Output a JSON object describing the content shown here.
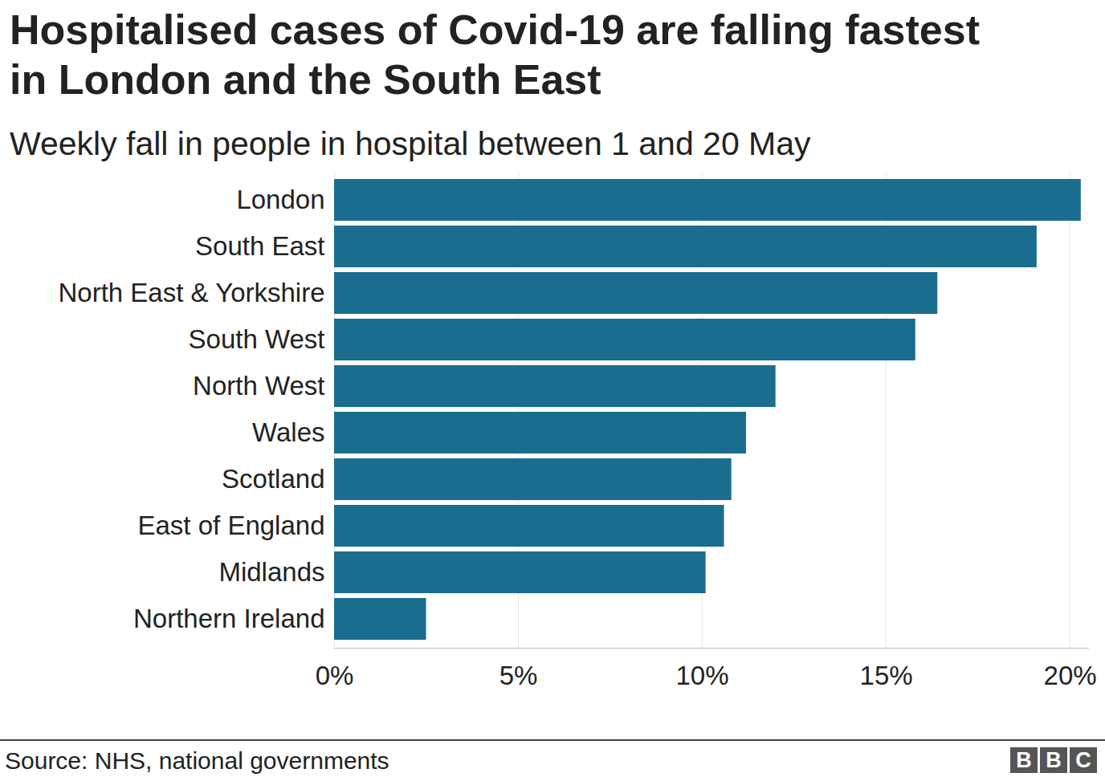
{
  "chart_data": {
    "type": "bar",
    "orientation": "horizontal",
    "title": "Hospitalised cases of Covid-19 are falling fastest in London and the South East",
    "subtitle": "Weekly fall in people in hospital between 1 and 20 May",
    "source": "Source: NHS, national governments",
    "logo": "BBC",
    "categories": [
      "London",
      "South East",
      "North East & Yorkshire",
      "South West",
      "North West",
      "Wales",
      "Scotland",
      "East of England",
      "Midlands",
      "Northern Ireland"
    ],
    "values": [
      20.3,
      19.1,
      16.4,
      15.8,
      12.0,
      11.2,
      10.8,
      10.6,
      10.1,
      2.5
    ],
    "color": "#1b6d8f",
    "xlim": [
      0,
      20.5
    ],
    "xticks": [
      {
        "value": 0,
        "label": "0%"
      },
      {
        "value": 5,
        "label": "5%"
      },
      {
        "value": 10,
        "label": "10%"
      },
      {
        "value": 15,
        "label": "15%"
      },
      {
        "value": 20,
        "label": "20%"
      }
    ],
    "grid": true
  }
}
